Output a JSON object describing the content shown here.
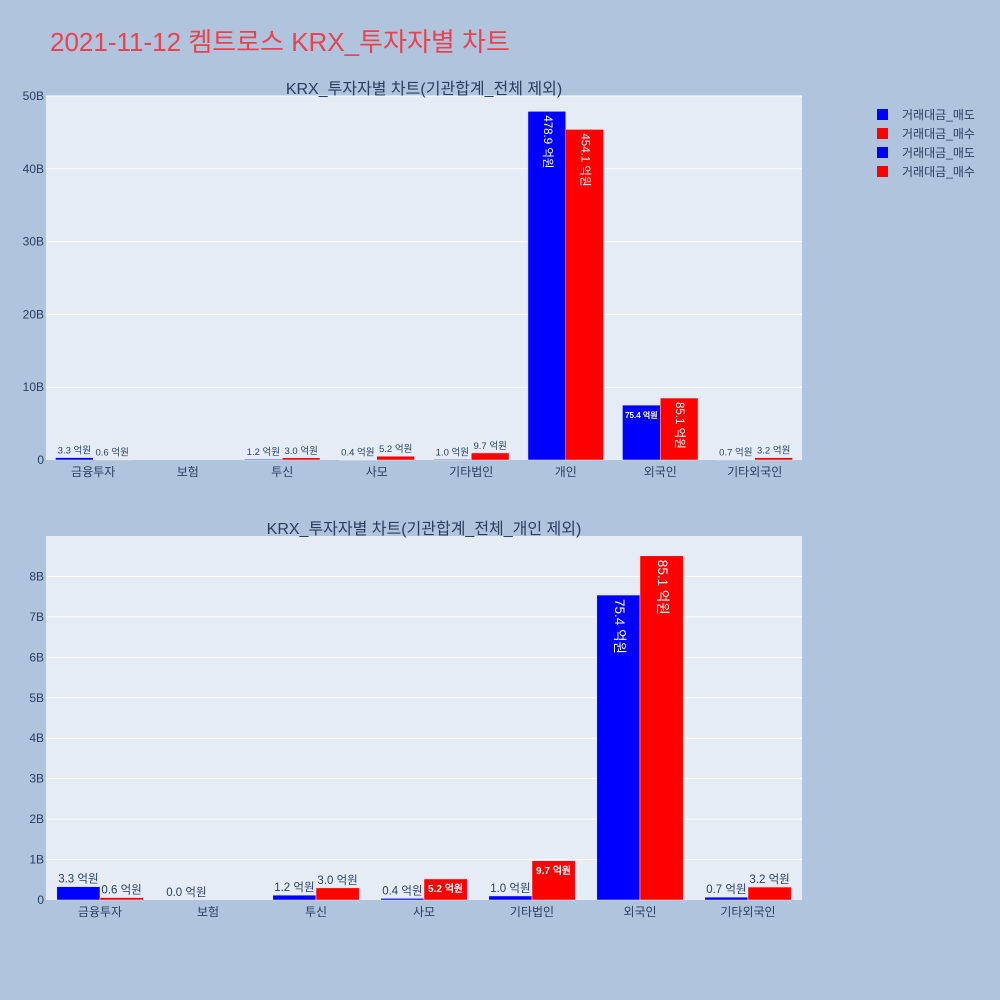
{
  "page_title": "2021-11-12 켐트로스 KRX_투자자별 차트",
  "colors": {
    "sell": "#0000ff",
    "buy": "#ff0000",
    "plot_bg": "#e5ecf6",
    "page_bg": "#b0c4de",
    "title": "#e8434f"
  },
  "legend": [
    {
      "label": "거래대금_매도",
      "color": "#0000ff"
    },
    {
      "label": "거래대금_매수",
      "color": "#ff0000"
    },
    {
      "label": "거래대금_매도",
      "color": "#0000ff"
    },
    {
      "label": "거래대금_매수",
      "color": "#ff0000"
    }
  ],
  "chart_data": [
    {
      "type": "bar",
      "title": "KRX_투자자별 차트(기관합계_전체 제외)",
      "categories": [
        "금융투자",
        "보험",
        "투신",
        "사모",
        "기타법인",
        "개인",
        "외국인",
        "기타외국인"
      ],
      "ylim": [
        0,
        50
      ],
      "yticks": [
        0,
        10,
        20,
        30,
        40,
        50
      ],
      "ytick_labels": [
        "0",
        "10B",
        "20B",
        "30B",
        "40B",
        "50B"
      ],
      "grid": true,
      "legend_position": "top-right",
      "series": [
        {
          "name": "거래대금_매도",
          "color": "#0000ff",
          "values": [
            0.33,
            null,
            0.12,
            0.04,
            0.1,
            47.89,
            7.54,
            0.07
          ],
          "labels": [
            "3.3 억원",
            "",
            "1.2 억원",
            "0.4 억원",
            "1.0 억원",
            "478.9 억원",
            "75.4 억원",
            "0.7 억원"
          ]
        },
        {
          "name": "거래대금_매수",
          "color": "#ff0000",
          "values": [
            0.06,
            null,
            0.3,
            0.52,
            0.97,
            45.41,
            8.51,
            0.32
          ],
          "labels": [
            "0.6 억원",
            "",
            "3.0 억원",
            "5.2 억원",
            "9.7 억원",
            "454.1 억원",
            "85.1 억원",
            "3.2 억원"
          ]
        }
      ]
    },
    {
      "type": "bar",
      "title": "KRX_투자자별 차트(기관합계_전체_개인 제외)",
      "categories": [
        "금융투자",
        "보험",
        "투신",
        "사모",
        "기타법인",
        "외국인",
        "기타외국인"
      ],
      "ylim": [
        0,
        9
      ],
      "yticks": [
        0,
        1,
        2,
        3,
        4,
        5,
        6,
        7,
        8
      ],
      "ytick_labels": [
        "0",
        "1B",
        "2B",
        "3B",
        "4B",
        "5B",
        "6B",
        "7B",
        "8B"
      ],
      "grid": true,
      "series": [
        {
          "name": "거래대금_매도",
          "color": "#0000ff",
          "values": [
            0.33,
            0.0,
            0.12,
            0.04,
            0.1,
            7.54,
            0.07
          ],
          "labels": [
            "3.3 억원",
            "0.0 억원",
            "1.2 억원",
            "0.4 억원",
            "1.0 억원",
            "75.4 억원",
            "0.7 억원"
          ]
        },
        {
          "name": "거래대금_매수",
          "color": "#ff0000",
          "values": [
            0.06,
            null,
            0.3,
            0.52,
            0.97,
            8.51,
            0.32
          ],
          "labels": [
            "0.6 억원",
            "",
            "3.0 억원",
            "5.2 억원",
            "9.7 억원",
            "85.1 억원",
            "3.2 억원"
          ]
        }
      ]
    }
  ]
}
